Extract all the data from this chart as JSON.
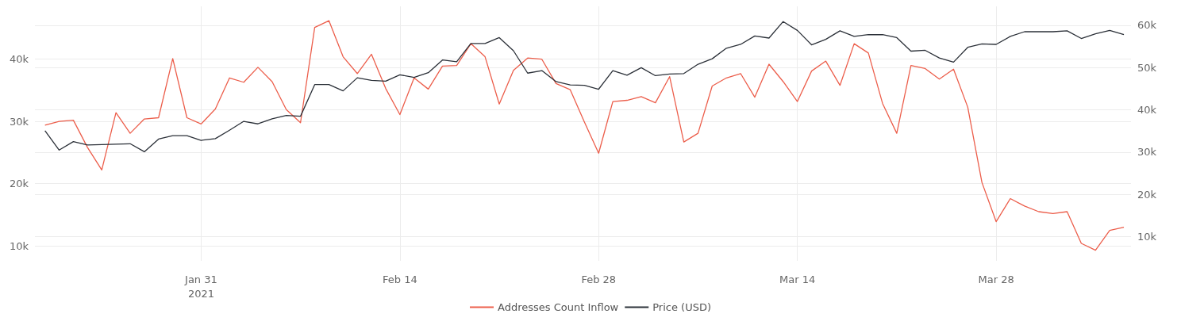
{
  "chart_data": {
    "type": "line",
    "x": [
      "2021-01-20",
      "2021-01-21",
      "2021-01-22",
      "2021-01-23",
      "2021-01-24",
      "2021-01-25",
      "2021-01-26",
      "2021-01-27",
      "2021-01-28",
      "2021-01-29",
      "2021-01-30",
      "2021-01-31",
      "2021-02-01",
      "2021-02-02",
      "2021-02-03",
      "2021-02-04",
      "2021-02-05",
      "2021-02-06",
      "2021-02-07",
      "2021-02-08",
      "2021-02-09",
      "2021-02-10",
      "2021-02-11",
      "2021-02-12",
      "2021-02-13",
      "2021-02-14",
      "2021-02-15",
      "2021-02-16",
      "2021-02-17",
      "2021-02-18",
      "2021-02-19",
      "2021-02-20",
      "2021-02-21",
      "2021-02-22",
      "2021-02-23",
      "2021-02-24",
      "2021-02-25",
      "2021-02-26",
      "2021-02-27",
      "2021-02-28",
      "2021-03-01",
      "2021-03-02",
      "2021-03-03",
      "2021-03-04",
      "2021-03-05",
      "2021-03-06",
      "2021-03-07",
      "2021-03-08",
      "2021-03-09",
      "2021-03-10",
      "2021-03-11",
      "2021-03-12",
      "2021-03-13",
      "2021-03-14",
      "2021-03-15",
      "2021-03-16",
      "2021-03-17",
      "2021-03-18",
      "2021-03-19",
      "2021-03-20",
      "2021-03-21",
      "2021-03-22",
      "2021-03-23",
      "2021-03-24",
      "2021-03-25",
      "2021-03-26",
      "2021-03-27",
      "2021-03-28",
      "2021-03-29",
      "2021-03-30",
      "2021-03-31",
      "2021-04-01",
      "2021-04-02",
      "2021-04-03",
      "2021-04-04",
      "2021-04-05",
      "2021-04-06"
    ],
    "series": [
      {
        "name": "Addresses Count Inflow",
        "color": "#ec5e4b",
        "values": [
          29400,
          30000,
          30200,
          25800,
          22200,
          31400,
          28100,
          30400,
          30600,
          40100,
          30600,
          29600,
          32000,
          37000,
          36300,
          38700,
          36400,
          31900,
          29800,
          45100,
          46200,
          40400,
          37700,
          40800,
          35300,
          31100,
          37000,
          35200,
          38900,
          39000,
          42500,
          40400,
          32800,
          38200,
          40200,
          40000,
          36100,
          35100,
          29900,
          24900,
          33200,
          33400,
          34000,
          33000,
          37200,
          26700,
          28100,
          35700,
          37000,
          37700,
          33900,
          39200,
          36400,
          33200,
          38100,
          39700,
          35800,
          42500,
          41000,
          32900,
          28100,
          39000,
          38500,
          36800,
          38400,
          32300,
          20200,
          13900,
          17600,
          16400,
          15500,
          15200,
          15500,
          10400,
          9300,
          12500,
          13000
        ]
      },
      {
        "name": "Price (USD)",
        "color": "#2b3038",
        "axis": "y2",
        "values": [
          35100,
          30500,
          32500,
          31700,
          31800,
          31900,
          32000,
          30100,
          33100,
          33900,
          33900,
          32800,
          33200,
          35200,
          37300,
          36700,
          37900,
          38700,
          38500,
          46000,
          46000,
          44500,
          47600,
          47000,
          46800,
          48300,
          47700,
          48800,
          51800,
          51400,
          55700,
          55700,
          57100,
          54000,
          48700,
          49300,
          46700,
          45900,
          45800,
          44900,
          49300,
          48200,
          50000,
          48100,
          48500,
          48600,
          50800,
          52100,
          54600,
          55500,
          57500,
          57000,
          60900,
          58800,
          55400,
          56700,
          58700,
          57400,
          57800,
          57800,
          57100,
          53900,
          54100,
          52300,
          51300,
          54800,
          55600,
          55500,
          57400,
          58500,
          58500,
          58500,
          58700,
          56900,
          58000,
          58800,
          57800
        ]
      }
    ],
    "xlim": [
      "2021-01-19T07:00",
      "2021-04-06T12:00"
    ],
    "xticks": [
      {
        "value": "2021-01-31",
        "label": "Jan 31\n2021"
      },
      {
        "value": "2021-02-14",
        "label": "Feb 14"
      },
      {
        "value": "2021-02-28",
        "label": "Feb 28"
      },
      {
        "value": "2021-03-14",
        "label": "Mar 14"
      },
      {
        "value": "2021-03-28",
        "label": "Mar 28"
      }
    ],
    "ylim": [
      7600,
      48500
    ],
    "yticks": [
      {
        "value": 10000,
        "label": "10k"
      },
      {
        "value": 20000,
        "label": "20k"
      },
      {
        "value": 30000,
        "label": "30k"
      },
      {
        "value": 40000,
        "label": "40k"
      }
    ],
    "y2lim": [
      4300,
      64500
    ],
    "y2ticks": [
      {
        "value": 10000,
        "label": "10k"
      },
      {
        "value": 20000,
        "label": "20k"
      },
      {
        "value": 30000,
        "label": "30k"
      },
      {
        "value": 40000,
        "label": "40k"
      },
      {
        "value": 50000,
        "label": "50k"
      },
      {
        "value": 60000,
        "label": "60k"
      }
    ],
    "grid": true,
    "legend": "bottom",
    "marker": "none"
  }
}
